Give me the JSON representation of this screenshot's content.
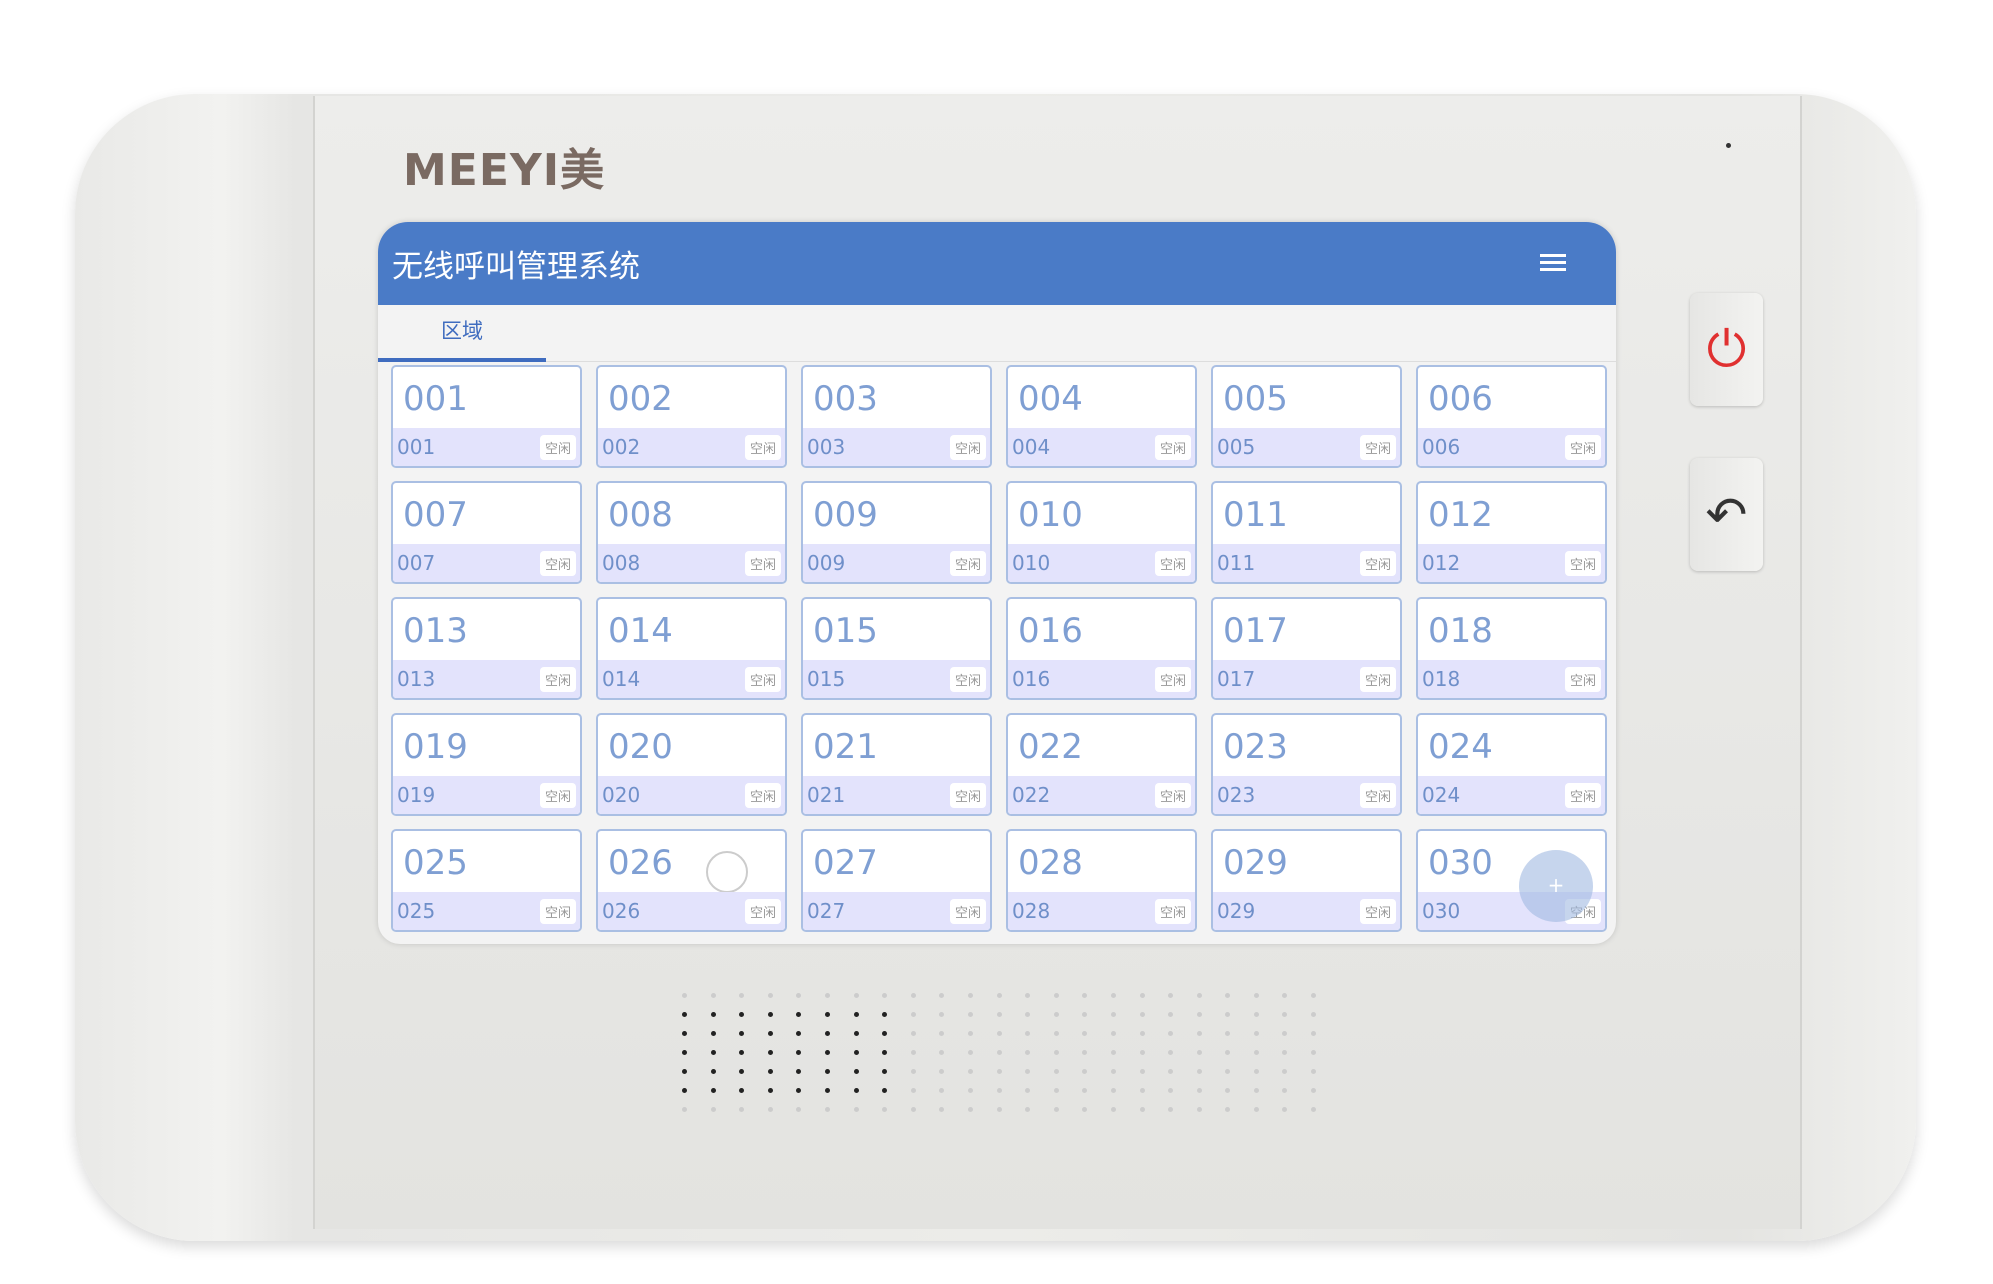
{
  "device": {
    "brand": "MEEYI美"
  },
  "header": {
    "title": "无线呼叫管理系统",
    "menu_icon": "hamburger-icon"
  },
  "tabs": [
    {
      "label": "区域",
      "active": true
    }
  ],
  "colors": {
    "header": "#4a7bc7",
    "accent": "#3f6cbf",
    "cell_strip": "#e3e3fc"
  },
  "cells": [
    {
      "name": "001",
      "sub": "001",
      "status": "空闲"
    },
    {
      "name": "002",
      "sub": "002",
      "status": "空闲"
    },
    {
      "name": "003",
      "sub": "003",
      "status": "空闲"
    },
    {
      "name": "004",
      "sub": "004",
      "status": "空闲"
    },
    {
      "name": "005",
      "sub": "005",
      "status": "空闲"
    },
    {
      "name": "006",
      "sub": "006",
      "status": "空闲"
    },
    {
      "name": "007",
      "sub": "007",
      "status": "空闲"
    },
    {
      "name": "008",
      "sub": "008",
      "status": "空闲"
    },
    {
      "name": "009",
      "sub": "009",
      "status": "空闲"
    },
    {
      "name": "010",
      "sub": "010",
      "status": "空闲"
    },
    {
      "name": "011",
      "sub": "011",
      "status": "空闲"
    },
    {
      "name": "012",
      "sub": "012",
      "status": "空闲"
    },
    {
      "name": "013",
      "sub": "013",
      "status": "空闲"
    },
    {
      "name": "014",
      "sub": "014",
      "status": "空闲"
    },
    {
      "name": "015",
      "sub": "015",
      "status": "空闲"
    },
    {
      "name": "016",
      "sub": "016",
      "status": "空闲"
    },
    {
      "name": "017",
      "sub": "017",
      "status": "空闲"
    },
    {
      "name": "018",
      "sub": "018",
      "status": "空闲"
    },
    {
      "name": "019",
      "sub": "019",
      "status": "空闲"
    },
    {
      "name": "020",
      "sub": "020",
      "status": "空闲"
    },
    {
      "name": "021",
      "sub": "021",
      "status": "空闲"
    },
    {
      "name": "022",
      "sub": "022",
      "status": "空闲"
    },
    {
      "name": "023",
      "sub": "023",
      "status": "空闲"
    },
    {
      "name": "024",
      "sub": "024",
      "status": "空闲"
    },
    {
      "name": "025",
      "sub": "025",
      "status": "空闲"
    },
    {
      "name": "026",
      "sub": "026",
      "status": "空闲"
    },
    {
      "name": "027",
      "sub": "027",
      "status": "空闲"
    },
    {
      "name": "028",
      "sub": "028",
      "status": "空闲"
    },
    {
      "name": "029",
      "sub": "029",
      "status": "空闲"
    },
    {
      "name": "030",
      "sub": "030",
      "status": "空闲"
    }
  ],
  "fab": {
    "label": "+"
  },
  "hardware_buttons": [
    {
      "icon": "power-icon",
      "glyph": "⏻",
      "color": "#e03030"
    },
    {
      "icon": "back-icon",
      "glyph": "↶",
      "color": "#333333"
    }
  ]
}
